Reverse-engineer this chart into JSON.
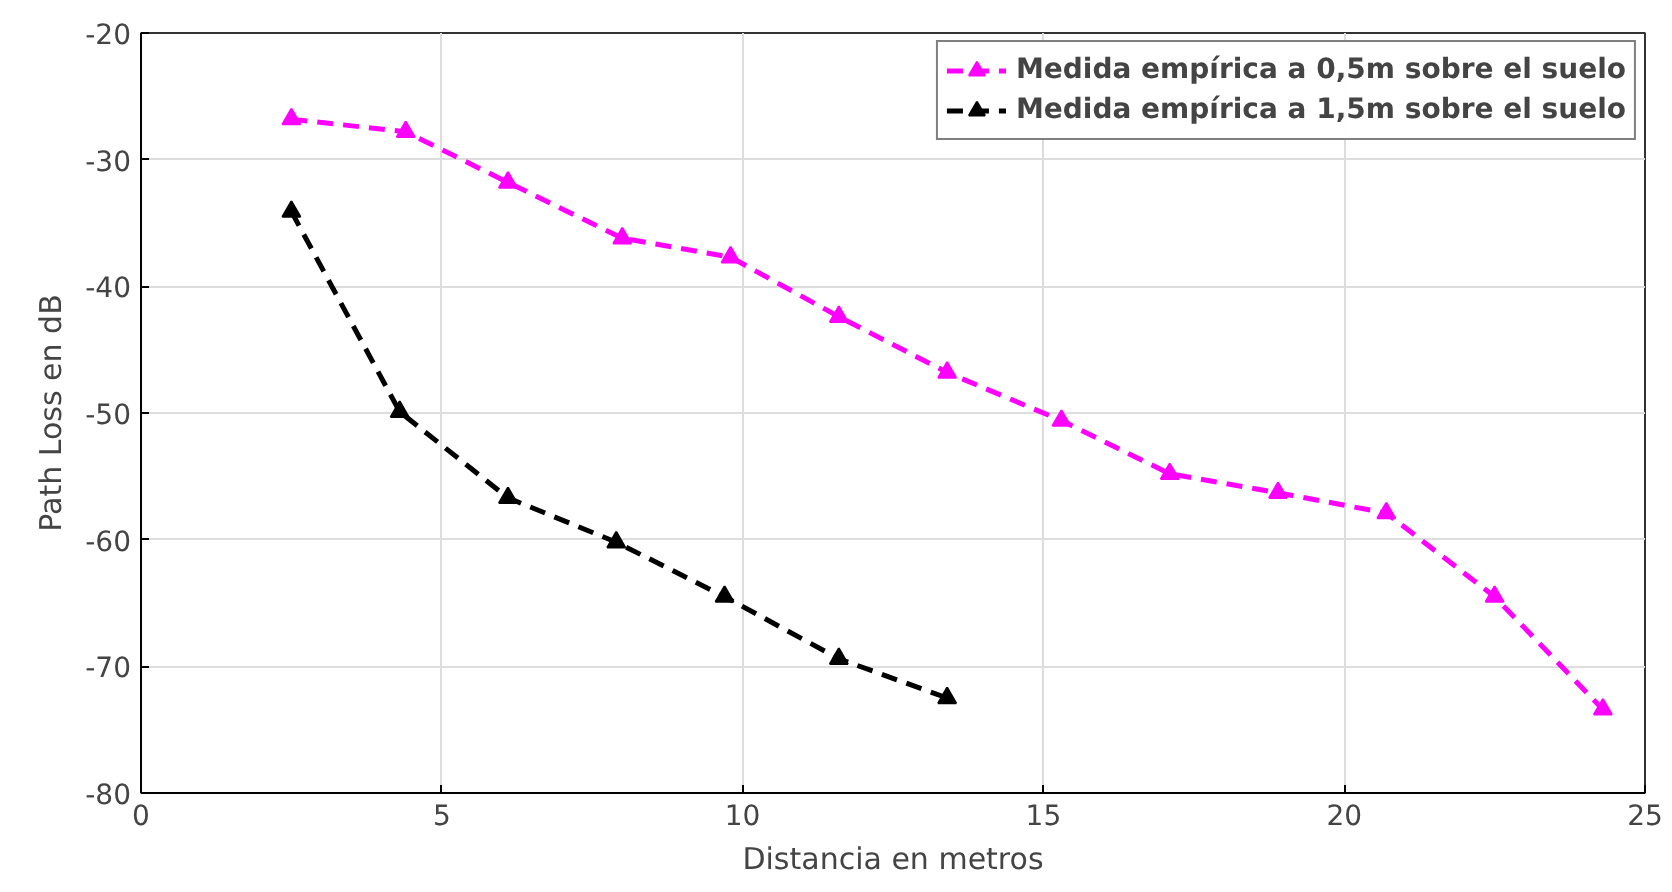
{
  "chart_data": {
    "type": "line",
    "xlabel": "Distancia en metros",
    "ylabel": "Path Loss en dB",
    "xlim": [
      0,
      25
    ],
    "ylim": [
      -80,
      -20
    ],
    "xticks": [
      0,
      5,
      10,
      15,
      20,
      25
    ],
    "yticks": [
      -80,
      -70,
      -60,
      -50,
      -40,
      -30,
      -20
    ],
    "grid": true,
    "legend": "top right",
    "marker": "triangle",
    "line_style": "dashed",
    "series": [
      {
        "name": "Medida empírica a 0,5m sobre el suelo",
        "color": "#ff00ff",
        "x": [
          2.5,
          4.4,
          6.1,
          8.0,
          9.8,
          11.6,
          13.4,
          15.3,
          17.1,
          18.9,
          20.7,
          22.5,
          24.3
        ],
        "values": [
          -26.8,
          -27.8,
          -31.8,
          -36.2,
          -37.7,
          -42.4,
          -46.8,
          -50.6,
          -54.8,
          -56.3,
          -57.9,
          -64.5,
          -73.4
        ]
      },
      {
        "name": "Medida empírica a 1,5m sobre el suelo",
        "color": "#000000",
        "x": [
          2.5,
          4.3,
          6.1,
          7.9,
          9.7,
          11.6,
          13.4
        ],
        "values": [
          -34.1,
          -49.9,
          -56.7,
          -60.2,
          -64.5,
          -69.4,
          -72.5
        ]
      }
    ]
  }
}
